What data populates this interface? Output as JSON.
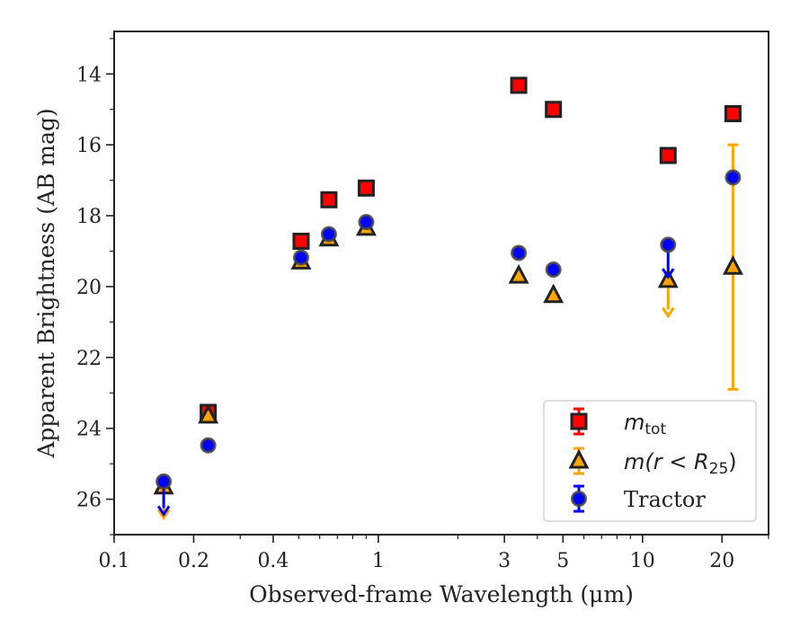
{
  "chart_data": {
    "type": "scatter",
    "xlabel": "Observed-frame Wavelength (μm)",
    "ylabel": "Apparent Brightness (AB mag)",
    "xscale": "log",
    "xlim": [
      0.1,
      30
    ],
    "ylim": [
      27,
      12.8
    ],
    "y_inverted": true,
    "x_ticks": [
      {
        "value": 0.1,
        "label": "0.1"
      },
      {
        "value": 0.2,
        "label": "0.2"
      },
      {
        "value": 0.4,
        "label": "0.4"
      },
      {
        "value": 1,
        "label": "1"
      },
      {
        "value": 3,
        "label": "3"
      },
      {
        "value": 5,
        "label": "5"
      },
      {
        "value": 10,
        "label": "10"
      },
      {
        "value": 20,
        "label": "20"
      }
    ],
    "y_ticks": [
      {
        "value": 14,
        "label": "14"
      },
      {
        "value": 16,
        "label": "16"
      },
      {
        "value": 18,
        "label": "18"
      },
      {
        "value": 20,
        "label": "20"
      },
      {
        "value": 22,
        "label": "22"
      },
      {
        "value": 24,
        "label": "24"
      },
      {
        "value": 26,
        "label": "26"
      }
    ],
    "legend": {
      "position": "lower-right",
      "entries": [
        {
          "series": "mtot",
          "label_main": "m",
          "label_sub": "tot"
        },
        {
          "series": "mr25",
          "label_main": "m(r < R",
          "label_sub": "25",
          "label_end": ")"
        },
        {
          "series": "tractor",
          "label_main": "Tractor"
        }
      ]
    },
    "series": [
      {
        "name": "m_tot",
        "key": "mtot",
        "marker": "square",
        "color": "#ff0000",
        "points": [
          {
            "x": 0.227,
            "y": 23.55
          },
          {
            "x": 0.51,
            "y": 18.72
          },
          {
            "x": 0.65,
            "y": 17.55
          },
          {
            "x": 0.9,
            "y": 17.22
          },
          {
            "x": 3.4,
            "y": 14.32
          },
          {
            "x": 4.6,
            "y": 15.0
          },
          {
            "x": 12.5,
            "y": 16.3
          },
          {
            "x": 22,
            "y": 15.12
          }
        ]
      },
      {
        "name": "m(r<R25)",
        "key": "mr25",
        "marker": "triangle",
        "color": "#ffa500",
        "points": [
          {
            "x": 0.154,
            "y": 25.65,
            "upper_limit": true,
            "limit_to": 26.5
          },
          {
            "x": 0.227,
            "y": 23.65
          },
          {
            "x": 0.51,
            "y": 19.3
          },
          {
            "x": 0.65,
            "y": 18.65
          },
          {
            "x": 0.9,
            "y": 18.35
          },
          {
            "x": 3.4,
            "y": 19.7
          },
          {
            "x": 4.6,
            "y": 20.25
          },
          {
            "x": 12.5,
            "y": 19.82,
            "upper_limit": true,
            "limit_to": 20.8
          },
          {
            "x": 22,
            "y": 19.45,
            "err_low": 16.0,
            "err_high": 22.9
          }
        ]
      },
      {
        "name": "Tractor",
        "key": "tractor",
        "marker": "circle",
        "color": "#0000ff",
        "points": [
          {
            "x": 0.154,
            "y": 25.5,
            "upper_limit": true,
            "limit_to": 26.4
          },
          {
            "x": 0.227,
            "y": 24.48
          },
          {
            "x": 0.51,
            "y": 19.18
          },
          {
            "x": 0.65,
            "y": 18.52
          },
          {
            "x": 0.9,
            "y": 18.18
          },
          {
            "x": 3.4,
            "y": 19.05
          },
          {
            "x": 4.6,
            "y": 19.52
          },
          {
            "x": 12.5,
            "y": 18.82,
            "upper_limit": true,
            "limit_to": 19.7
          },
          {
            "x": 22,
            "y": 16.92
          }
        ]
      }
    ]
  }
}
